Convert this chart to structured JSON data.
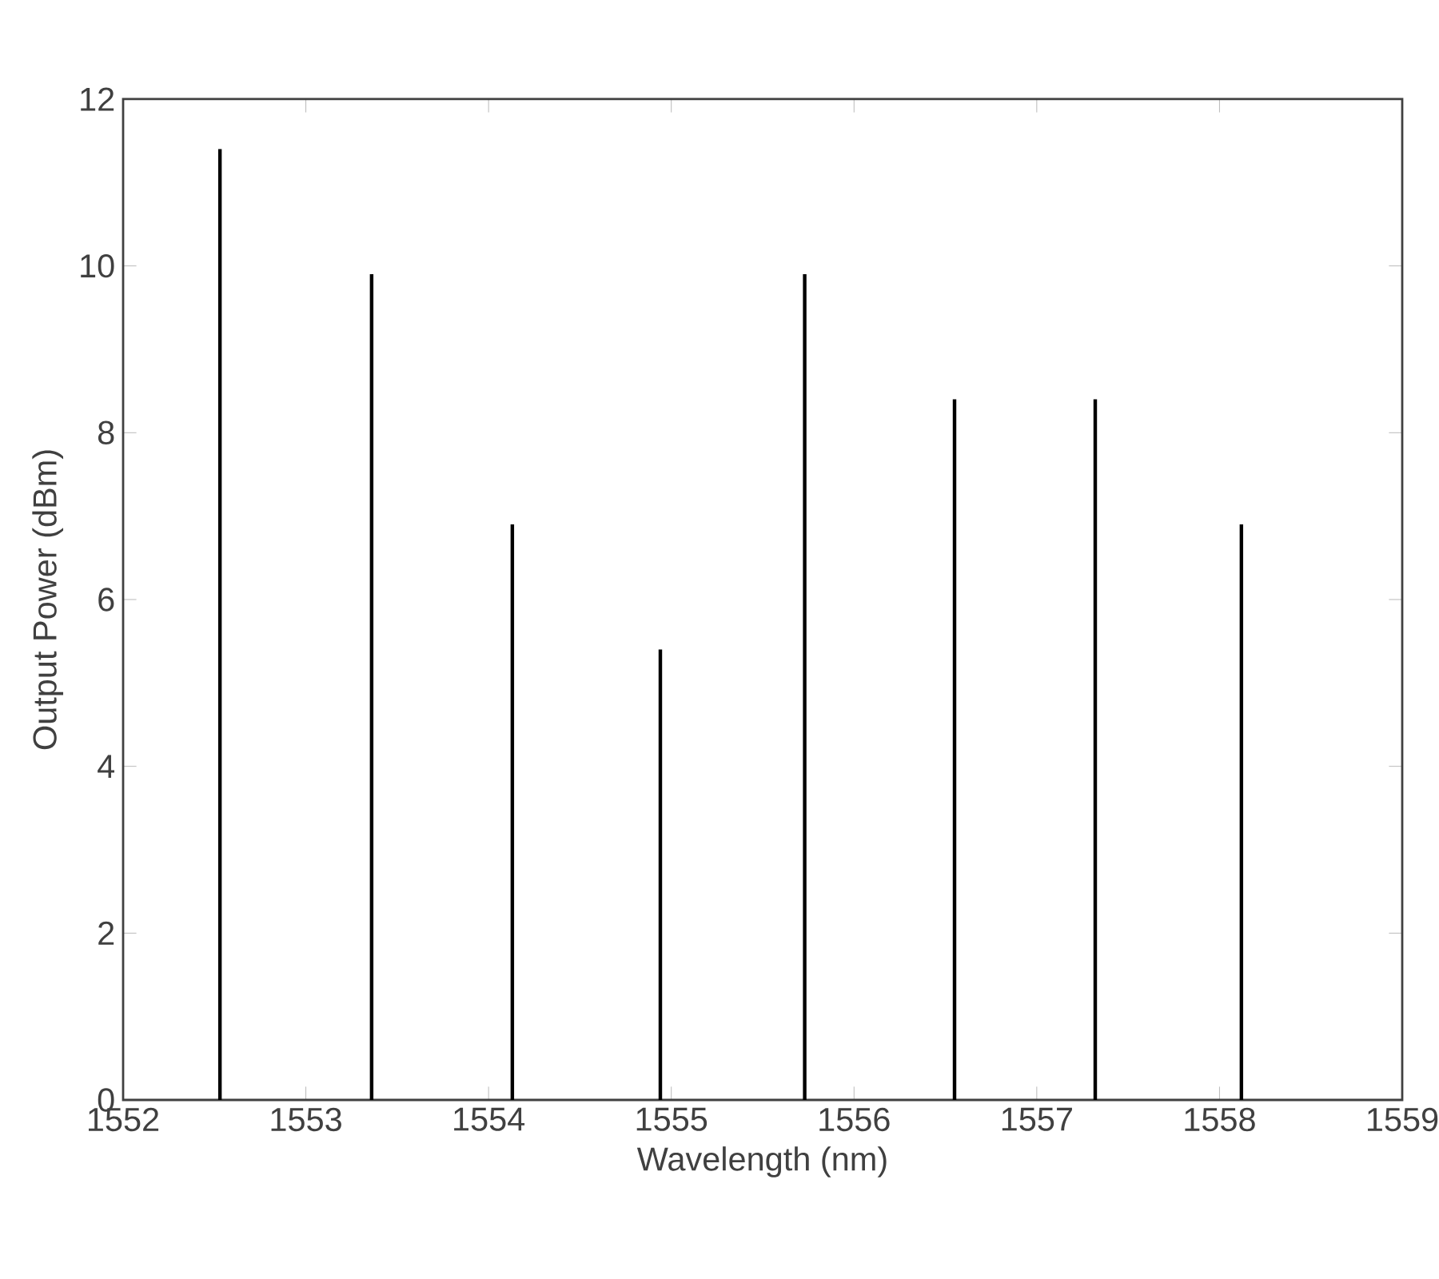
{
  "chart_data": {
    "type": "bar",
    "xlabel": "Wavelength (nm)",
    "ylabel": "Output Power (dBm)",
    "x": [
      1552.53,
      1553.36,
      1554.13,
      1554.94,
      1555.73,
      1556.55,
      1557.32,
      1558.12
    ],
    "values": [
      11.4,
      9.9,
      6.9,
      5.4,
      9.9,
      8.4,
      8.4,
      6.9
    ],
    "color": "#000000",
    "xlim": [
      1552,
      1559
    ],
    "xticks": [
      1552,
      1553,
      1554,
      1555,
      1556,
      1557,
      1558,
      1559
    ],
    "ylim": [
      0,
      12
    ],
    "yticks": [
      0,
      2,
      4,
      6,
      8,
      10,
      12
    ],
    "grid": false
  }
}
